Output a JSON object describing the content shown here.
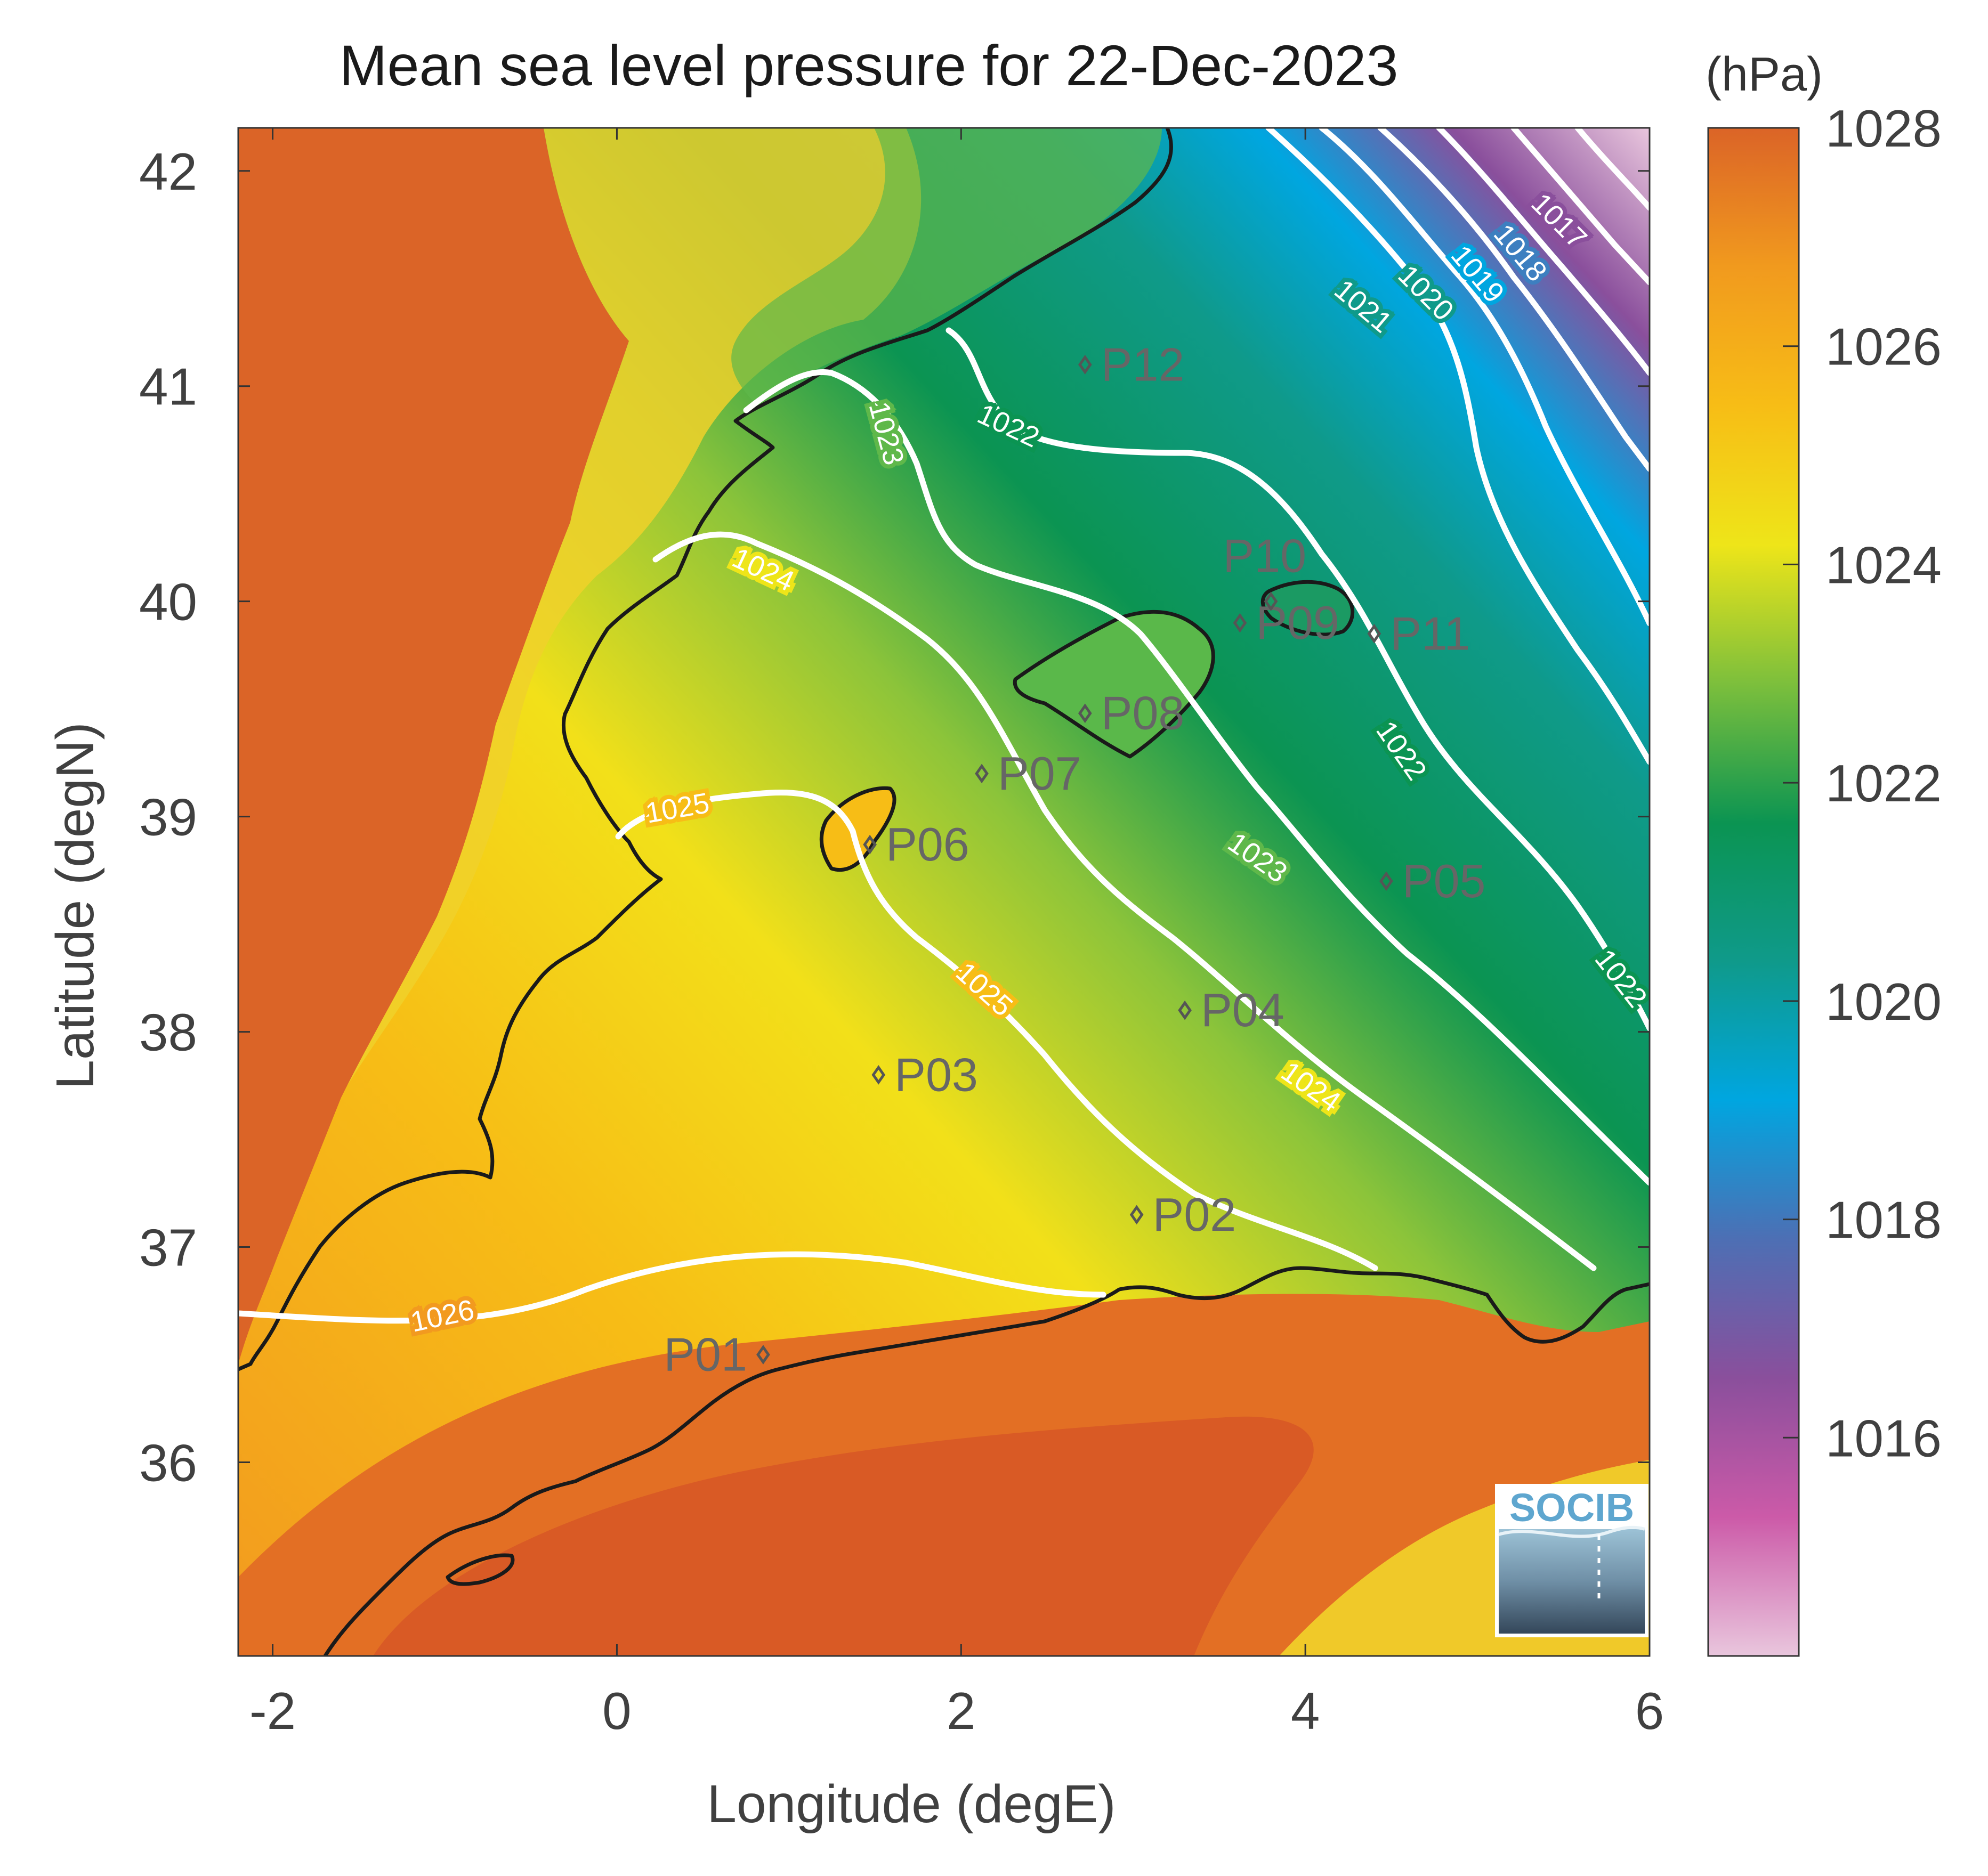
{
  "title": "Mean sea level pressure for 22-Dec-2023",
  "unit_label": "(hPa)",
  "xlabel": "Longitude (degE)",
  "ylabel": "Latitude (degN)",
  "x_ticks": [
    -2,
    0,
    2,
    4,
    6
  ],
  "y_ticks": [
    36,
    37,
    38,
    39,
    40,
    41,
    42
  ],
  "x_tick_labels": [
    "-2",
    "0",
    "2",
    "4",
    "6"
  ],
  "y_tick_labels": [
    "36",
    "37",
    "38",
    "39",
    "40",
    "41",
    "42"
  ],
  "xlim": [
    -2.2,
    6.0
  ],
  "ylim": [
    35.1,
    42.2
  ],
  "colorbar": {
    "range": [
      1014,
      1028
    ],
    "tick_values": [
      1016,
      1018,
      1020,
      1022,
      1024,
      1026,
      1028
    ],
    "tick_labels": [
      "1016",
      "1018",
      "1020",
      "1022",
      "1024",
      "1026",
      "1028"
    ],
    "colors": [
      "#e9c6dd",
      "#cc5aa8",
      "#8a4f9c",
      "#4d6fb4",
      "#00a6e0",
      "#0f9a8a",
      "#0b9452",
      "#7cbf3c",
      "#eee519",
      "#f7bd16",
      "#f19a1e",
      "#db6427"
    ]
  },
  "logo_text": "SOCIB",
  "contour_labels": [
    "1017",
    "1018",
    "1019",
    "1020",
    "1021",
    "1022",
    "1022",
    "1022",
    "1023",
    "1023",
    "1024",
    "1024",
    "1025",
    "1025",
    "1026"
  ],
  "stations": [
    {
      "id": "P01",
      "lon": 0.85,
      "lat": 36.5
    },
    {
      "id": "P02",
      "lon": 3.02,
      "lat": 37.15
    },
    {
      "id": "P03",
      "lon": 1.52,
      "lat": 37.8
    },
    {
      "id": "P04",
      "lon": 3.3,
      "lat": 38.1
    },
    {
      "id": "P05",
      "lon": 4.47,
      "lat": 38.7
    },
    {
      "id": "P06",
      "lon": 1.47,
      "lat": 38.87
    },
    {
      "id": "P07",
      "lon": 2.12,
      "lat": 39.2
    },
    {
      "id": "P08",
      "lon": 2.72,
      "lat": 39.48
    },
    {
      "id": "P09",
      "lon": 3.62,
      "lat": 39.9
    },
    {
      "id": "P10",
      "lon": 3.8,
      "lat": 40.0
    },
    {
      "id": "P11",
      "lon": 4.4,
      "lat": 39.85
    },
    {
      "id": "P12",
      "lon": 2.72,
      "lat": 41.1
    }
  ]
}
